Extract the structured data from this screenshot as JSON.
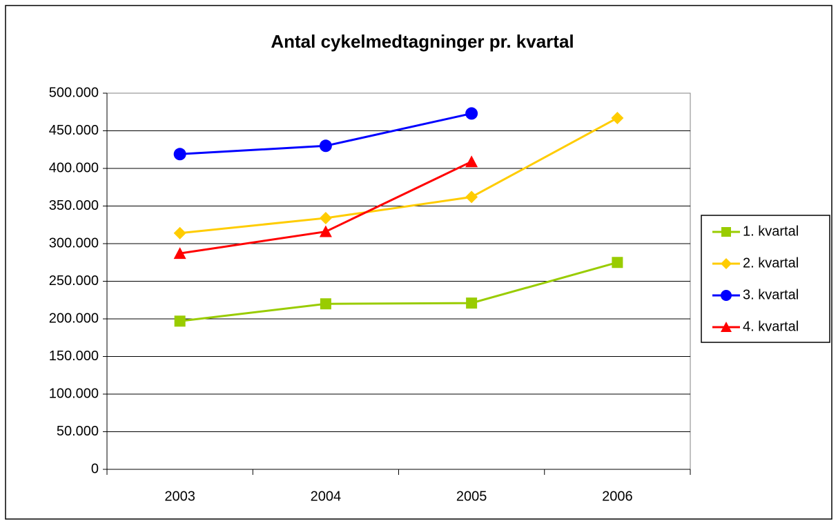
{
  "chart_data": {
    "type": "line",
    "title": "Antal cykelmedtagninger pr. kvartal",
    "categories": [
      "2003",
      "2004",
      "2005",
      "2006"
    ],
    "series": [
      {
        "name": "1. kvartal",
        "color": "#99cc00",
        "marker": "square",
        "values": [
          197000,
          220000,
          221000,
          275000
        ]
      },
      {
        "name": "2. kvartal",
        "color": "#ffcc00",
        "marker": "diamond",
        "values": [
          314000,
          334000,
          362000,
          467000
        ]
      },
      {
        "name": "3. kvartal",
        "color": "#0000ff",
        "marker": "circle",
        "values": [
          419000,
          430000,
          473000,
          null
        ]
      },
      {
        "name": "4. kvartal",
        "color": "#ff0000",
        "marker": "triangle",
        "values": [
          287000,
          316000,
          409000,
          null
        ]
      }
    ],
    "ylim": [
      0,
      500000
    ],
    "yticks": [
      0,
      {
        "value": 50000,
        "label": "50.000"
      },
      {
        "value": 100000,
        "label": "100.000"
      },
      {
        "value": 150000,
        "label": "150.000"
      },
      {
        "value": 200000,
        "label": "200.000"
      },
      {
        "value": 250000,
        "label": "250.000"
      },
      {
        "value": 300000,
        "label": "300.000"
      },
      {
        "value": 350000,
        "label": "350.000"
      },
      {
        "value": 400000,
        "label": "400.000"
      },
      {
        "value": 450000,
        "label": "450.000"
      },
      {
        "value": 500000,
        "label": "500.000"
      }
    ],
    "grid": true,
    "legend": "right"
  }
}
